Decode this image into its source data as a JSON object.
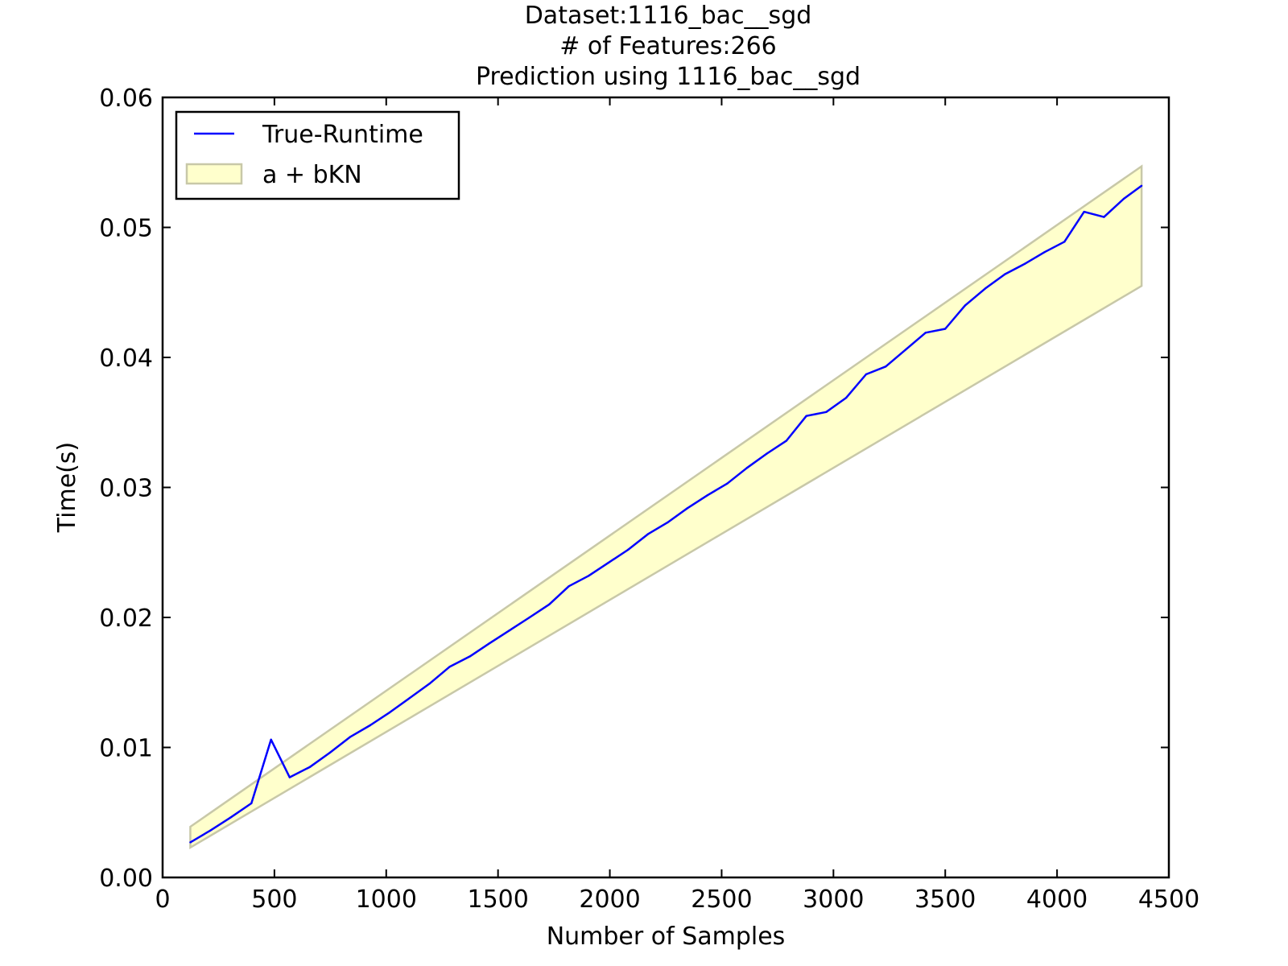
{
  "chart_data": {
    "type": "line",
    "title_lines": [
      "Dataset:1116_bac__sgd",
      "# of Features:266",
      "Prediction using 1116_bac__sgd"
    ],
    "xlabel": "Number of Samples",
    "ylabel": "Time(s)",
    "xlim": [
      0,
      4500
    ],
    "ylim": [
      0,
      0.06
    ],
    "x_ticks": [
      0,
      500,
      1000,
      1500,
      2000,
      2500,
      3000,
      3500,
      4000,
      4500
    ],
    "x_tick_labels": [
      "0",
      "500",
      "1000",
      "1500",
      "2000",
      "2500",
      "3000",
      "3500",
      "4000",
      "4500"
    ],
    "y_ticks": [
      0,
      0.01,
      0.02,
      0.03,
      0.04,
      0.05,
      0.06
    ],
    "y_tick_labels": [
      "0.00",
      "0.01",
      "0.02",
      "0.03",
      "0.04",
      "0.05",
      "0.06"
    ],
    "grid": false,
    "legend_position": "top-left",
    "legend": [
      {
        "label": "True-Runtime",
        "kind": "line",
        "color": "#0000ff"
      },
      {
        "label": "a + bKN",
        "kind": "band",
        "color": "#ffffcc",
        "edge_color": "#c8c8a8"
      }
    ],
    "band": {
      "name": "a + bKN",
      "color": "#ffffcc",
      "edge_color": "#c8c8a8",
      "x": [
        124,
        4378
      ],
      "upper": [
        0.0039,
        0.0547
      ],
      "lower": [
        0.0023,
        0.0455
      ]
    },
    "series": [
      {
        "name": "True-Runtime",
        "color": "#0000ff",
        "x": [
          124,
          212,
          303,
          397,
          485,
          568,
          659,
          748,
          838,
          928,
          1016,
          1105,
          1193,
          1283,
          1374,
          1461,
          1551,
          1641,
          1729,
          1817,
          1905,
          1993,
          2081,
          2170,
          2258,
          2347,
          2437,
          2525,
          2613,
          2702,
          2790,
          2879,
          2968,
          3057,
          3146,
          3234,
          3323,
          3412,
          3500,
          3589,
          3679,
          3767,
          3856,
          3944,
          4033,
          4121,
          4210,
          4298,
          4378
        ],
        "y": [
          0.0027,
          0.0036,
          0.0046,
          0.0057,
          0.0106,
          0.0077,
          0.0085,
          0.0096,
          0.0108,
          0.0117,
          0.0127,
          0.0138,
          0.0149,
          0.0162,
          0.017,
          0.018,
          0.019,
          0.02,
          0.021,
          0.0224,
          0.0232,
          0.0242,
          0.0252,
          0.0264,
          0.0273,
          0.0284,
          0.0294,
          0.0303,
          0.0315,
          0.0326,
          0.0336,
          0.0355,
          0.0358,
          0.0369,
          0.0387,
          0.0393,
          0.0406,
          0.0419,
          0.0422,
          0.044,
          0.0453,
          0.0464,
          0.0472,
          0.0481,
          0.0489,
          0.0512,
          0.0508,
          0.0522,
          0.0532
        ]
      }
    ]
  }
}
